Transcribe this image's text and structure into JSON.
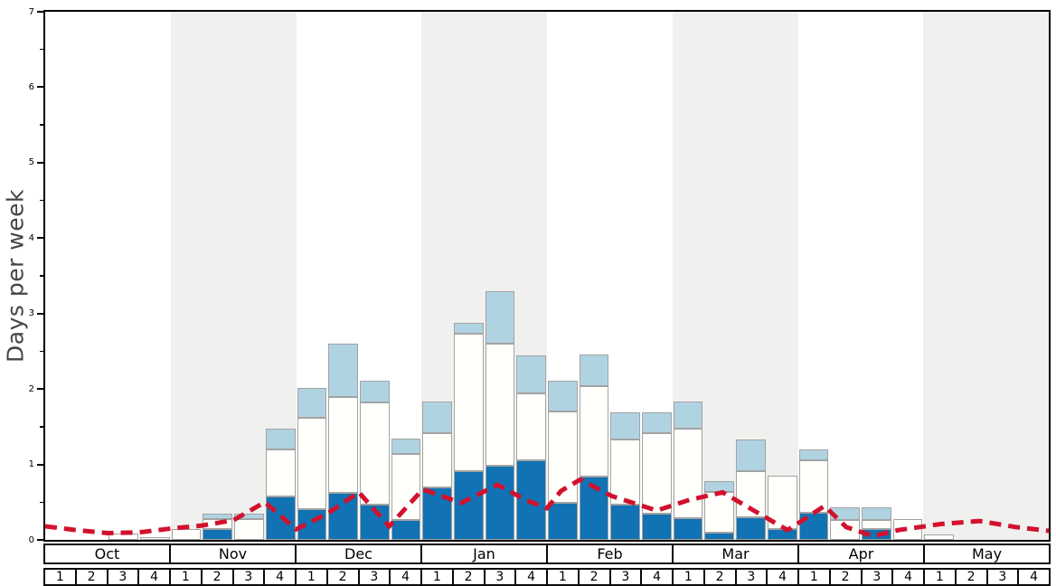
{
  "chart_data": {
    "type": "bar",
    "subtype": "stacked-weekly-bars-with-dashed-average-line",
    "title": "",
    "ylabel": "Days per week",
    "ylim": [
      0,
      7
    ],
    "yticks": [
      "0",
      "1",
      "2",
      "3",
      "4",
      "5",
      "6",
      "7"
    ],
    "minor_tick_step": 0.5,
    "grid": false,
    "legend": "none",
    "months": [
      "Oct",
      "Nov",
      "Dec",
      "Jan",
      "Feb",
      "Mar",
      "Apr",
      "May"
    ],
    "week_labels": [
      "1",
      "2",
      "3",
      "4"
    ],
    "weeks_per_month": 4,
    "shaded_month_indices": [
      1,
      3,
      5,
      7
    ],
    "series": [
      {
        "name": "dark-blue-days",
        "color": "#1172b4",
        "values": [
          0,
          0,
          0,
          0,
          0,
          0.15,
          0,
          0.57,
          0.41,
          0.62,
          0.47,
          0.26,
          0.7,
          0.91,
          0.98,
          1.05,
          0.49,
          0.84,
          0.47,
          0.35,
          0.29,
          0.1,
          0.3,
          0.15,
          0.36,
          0,
          0.14,
          0,
          0,
          0,
          0,
          0
        ]
      },
      {
        "name": "white-days",
        "color": "#fffffb",
        "values": [
          0,
          0,
          0.08,
          0.04,
          0.14,
          0.13,
          0.28,
          0.63,
          1.21,
          1.28,
          1.35,
          0.88,
          0.71,
          1.82,
          1.62,
          0.89,
          1.21,
          1.2,
          0.86,
          1.07,
          1.18,
          0.54,
          0.61,
          0.7,
          0.7,
          0.26,
          0.12,
          0.27,
          0.07,
          0,
          0,
          0
        ]
      },
      {
        "name": "light-blue-days",
        "color": "#b0d3e2",
        "values": [
          0,
          0,
          0,
          0,
          0,
          0.07,
          0.07,
          0.27,
          0.4,
          0.7,
          0.29,
          0.2,
          0.42,
          0.15,
          0.7,
          0.5,
          0.41,
          0.42,
          0.36,
          0.27,
          0.37,
          0.14,
          0.42,
          0,
          0.14,
          0.17,
          0.17,
          0,
          0,
          0,
          0,
          0
        ]
      }
    ],
    "line": {
      "name": "red-dashed-line",
      "color": "#d2112e",
      "width": 5,
      "dash": [
        13,
        8
      ],
      "points": [
        [
          0,
          0.18
        ],
        [
          1,
          0.13
        ],
        [
          2,
          0.09
        ],
        [
          3,
          0.1
        ],
        [
          4,
          0.15
        ],
        [
          5,
          0.19
        ],
        [
          6,
          0.26
        ],
        [
          7,
          0.5
        ],
        [
          8,
          0.14
        ],
        [
          9,
          0.35
        ],
        [
          10,
          0.63
        ],
        [
          10.97,
          0.18
        ],
        [
          12.04,
          0.67
        ],
        [
          13.27,
          0.49
        ],
        [
          14.42,
          0.73
        ],
        [
          15.37,
          0.52
        ],
        [
          16.0,
          0.42
        ],
        [
          16.45,
          0.65
        ],
        [
          17.06,
          0.8
        ],
        [
          18.07,
          0.58
        ],
        [
          19.5,
          0.39
        ],
        [
          20.54,
          0.53
        ],
        [
          21.6,
          0.63
        ],
        [
          22.55,
          0.4
        ],
        [
          23.67,
          0.13
        ],
        [
          24.85,
          0.45
        ],
        [
          25.54,
          0.17
        ],
        [
          26.4,
          0.05
        ],
        [
          27.2,
          0.13
        ],
        [
          28.55,
          0.21
        ],
        [
          29.79,
          0.25
        ],
        [
          30.94,
          0.17
        ],
        [
          32,
          0.12
        ]
      ]
    },
    "colors": {
      "band": "#f0f0ee",
      "bar_border": "#a3a3a3",
      "axis": "#000000",
      "ylabel_color": "#454545",
      "background": "#ffffff"
    }
  }
}
